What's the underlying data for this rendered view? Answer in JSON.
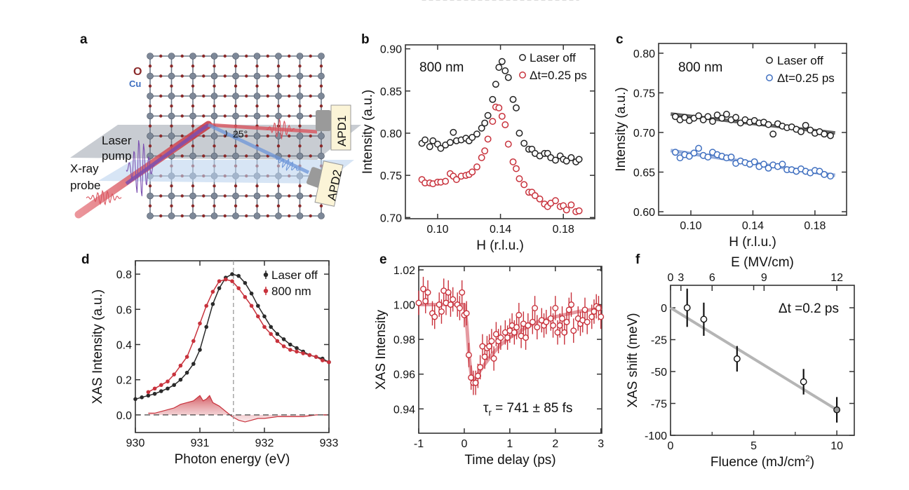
{
  "panel_labels": [
    "a",
    "b",
    "c",
    "d",
    "e",
    "f"
  ],
  "schematic": {
    "o_label": "O",
    "cu_label": "Cu",
    "laser_pump_lines": [
      "Laser",
      "pump"
    ],
    "xray_probe_lines": [
      "X-ray",
      "probe"
    ],
    "angle": "25°",
    "apd1": "APD1",
    "apd2": "APD2",
    "colors": {
      "o": "#8b2a2a",
      "cu": "#3f6fc0",
      "lattice": "#6f7a88",
      "xray": "#d9545e",
      "laser": "#7b4fb0",
      "scattered2": "#6e96d8"
    }
  },
  "chart_data": [
    {
      "panel": "b",
      "type": "scatter",
      "annotation": "800 nm",
      "xlabel": "H (r.l.u.)",
      "ylabel": "Intensity (a.u.)",
      "xlim": [
        0.0795,
        0.2
      ],
      "ylim": [
        0.6986,
        0.9047
      ],
      "xticks": [
        "0.10",
        "0.14",
        "0.18"
      ],
      "yticks": [
        "0.70",
        "0.75",
        "0.80",
        "0.85",
        "0.90"
      ],
      "legend": "top-right",
      "series": [
        {
          "name": "Laser off",
          "color": "#222222",
          "fit_color": "#6b6b6b",
          "x": [
            0.09,
            0.092,
            0.095,
            0.097,
            0.1,
            0.102,
            0.105,
            0.108,
            0.11,
            0.112,
            0.115,
            0.118,
            0.12,
            0.122,
            0.125,
            0.128,
            0.13,
            0.132,
            0.135,
            0.137,
            0.139,
            0.141,
            0.143,
            0.145,
            0.148,
            0.15,
            0.152,
            0.155,
            0.158,
            0.16,
            0.162,
            0.165,
            0.168,
            0.17,
            0.172,
            0.175,
            0.178,
            0.18,
            0.182,
            0.185,
            0.188,
            0.19
          ],
          "y": [
            0.788,
            0.792,
            0.784,
            0.791,
            0.787,
            0.782,
            0.786,
            0.789,
            0.801,
            0.791,
            0.792,
            0.794,
            0.791,
            0.795,
            0.799,
            0.806,
            0.812,
            0.821,
            0.84,
            0.858,
            0.878,
            0.885,
            0.874,
            0.866,
            0.84,
            0.83,
            0.8,
            0.788,
            0.781,
            0.781,
            0.776,
            0.773,
            0.776,
            0.776,
            0.771,
            0.768,
            0.773,
            0.769,
            0.767,
            0.771,
            0.766,
            0.769
          ]
        },
        {
          "name": "Δt=0.25 ps",
          "color": "#c8323c",
          "fit_color": "#e07a82",
          "x": [
            0.09,
            0.092,
            0.095,
            0.097,
            0.1,
            0.102,
            0.105,
            0.108,
            0.11,
            0.112,
            0.115,
            0.118,
            0.12,
            0.122,
            0.125,
            0.128,
            0.13,
            0.132,
            0.135,
            0.137,
            0.139,
            0.141,
            0.143,
            0.145,
            0.148,
            0.15,
            0.152,
            0.155,
            0.158,
            0.16,
            0.162,
            0.165,
            0.168,
            0.17,
            0.172,
            0.175,
            0.178,
            0.18,
            0.182,
            0.185,
            0.188,
            0.19
          ],
          "y": [
            0.745,
            0.741,
            0.741,
            0.74,
            0.742,
            0.742,
            0.743,
            0.752,
            0.749,
            0.745,
            0.749,
            0.75,
            0.751,
            0.754,
            0.76,
            0.771,
            0.779,
            0.793,
            0.814,
            0.831,
            0.83,
            0.82,
            0.81,
            0.787,
            0.766,
            0.758,
            0.746,
            0.739,
            0.73,
            0.73,
            0.726,
            0.722,
            0.716,
            0.713,
            0.717,
            0.72,
            0.713,
            0.714,
            0.709,
            0.715,
            0.707,
            0.708
          ]
        }
      ]
    },
    {
      "panel": "c",
      "type": "scatter",
      "annotation": "800 nm",
      "xlabel": "H (r.l.u.)",
      "ylabel": "Intensity (a.u.)",
      "xlim": [
        0.0792,
        0.2004
      ],
      "ylim": [
        0.5956,
        0.8123
      ],
      "xticks": [
        "0.10",
        "0.14",
        "0.18"
      ],
      "yticks": [
        "0.60",
        "0.65",
        "0.70",
        "0.75",
        "0.80"
      ],
      "legend": "top-right",
      "series": [
        {
          "name": "Laser off",
          "color": "#222222",
          "fit_color": "#555555",
          "x": [
            0.09,
            0.093,
            0.096,
            0.099,
            0.102,
            0.105,
            0.108,
            0.111,
            0.114,
            0.117,
            0.12,
            0.123,
            0.126,
            0.129,
            0.132,
            0.135,
            0.138,
            0.141,
            0.144,
            0.147,
            0.15,
            0.153,
            0.156,
            0.159,
            0.162,
            0.165,
            0.168,
            0.171,
            0.174,
            0.177,
            0.18,
            0.183,
            0.186,
            0.19
          ],
          "y": [
            0.72,
            0.716,
            0.719,
            0.715,
            0.718,
            0.721,
            0.716,
            0.72,
            0.714,
            0.722,
            0.718,
            0.723,
            0.716,
            0.719,
            0.712,
            0.716,
            0.713,
            0.715,
            0.712,
            0.713,
            0.71,
            0.698,
            0.711,
            0.708,
            0.706,
            0.707,
            0.704,
            0.701,
            0.709,
            0.703,
            0.699,
            0.701,
            0.698,
            0.696
          ]
        },
        {
          "name": "Δt=0.25 ps",
          "color": "#3f6fc0",
          "fit_color": "#8fa8d8",
          "x": [
            0.09,
            0.093,
            0.096,
            0.099,
            0.102,
            0.105,
            0.108,
            0.111,
            0.114,
            0.117,
            0.12,
            0.123,
            0.126,
            0.129,
            0.132,
            0.135,
            0.138,
            0.141,
            0.144,
            0.147,
            0.15,
            0.153,
            0.156,
            0.159,
            0.162,
            0.165,
            0.168,
            0.171,
            0.174,
            0.177,
            0.18,
            0.183,
            0.186,
            0.19
          ],
          "y": [
            0.675,
            0.668,
            0.672,
            0.67,
            0.674,
            0.68,
            0.671,
            0.669,
            0.675,
            0.672,
            0.67,
            0.668,
            0.669,
            0.661,
            0.664,
            0.662,
            0.66,
            0.663,
            0.657,
            0.66,
            0.655,
            0.659,
            0.657,
            0.66,
            0.653,
            0.653,
            0.651,
            0.654,
            0.651,
            0.649,
            0.652,
            0.651,
            0.647,
            0.645
          ]
        }
      ]
    },
    {
      "panel": "d",
      "type": "line",
      "xlabel": "Photon energy (eV)",
      "ylabel": "XAS Intensity (a.u.)",
      "xlim": [
        930,
        933
      ],
      "ylim": [
        -0.1,
        0.876
      ],
      "xticks": [
        "930",
        "931",
        "932",
        "933"
      ],
      "yticks": [
        "0.0",
        "0.2",
        "0.4",
        "0.6",
        "0.8"
      ],
      "vline_x": 931.52,
      "legend": "top-right",
      "series": [
        {
          "name": "Laser off",
          "color": "#2a2a2a",
          "x": [
            930.0,
            930.1,
            930.2,
            930.3,
            930.4,
            930.5,
            930.6,
            930.7,
            930.8,
            930.9,
            931.0,
            931.1,
            931.2,
            931.3,
            931.4,
            931.5,
            931.6,
            931.7,
            931.8,
            931.9,
            932.0,
            932.1,
            932.2,
            932.3,
            932.4,
            932.5,
            932.6,
            932.7,
            932.8,
            932.9,
            933.0
          ],
          "y": [
            0.09,
            0.1,
            0.11,
            0.12,
            0.135,
            0.15,
            0.17,
            0.2,
            0.24,
            0.29,
            0.37,
            0.5,
            0.63,
            0.72,
            0.78,
            0.8,
            0.79,
            0.75,
            0.69,
            0.62,
            0.56,
            0.5,
            0.46,
            0.43,
            0.4,
            0.38,
            0.36,
            0.34,
            0.33,
            0.32,
            0.3
          ]
        },
        {
          "name": "800 nm",
          "color": "#c8323c",
          "x": [
            930.2,
            930.3,
            930.4,
            930.5,
            930.6,
            930.7,
            930.8,
            930.9,
            931.0,
            931.1,
            931.2,
            931.3,
            931.4,
            931.5,
            931.6,
            931.7,
            931.8,
            931.9,
            932.0,
            932.1,
            932.2,
            932.3,
            932.4,
            932.5,
            932.6,
            932.7,
            932.8,
            932.9,
            933.0
          ],
          "y": [
            0.13,
            0.15,
            0.17,
            0.19,
            0.23,
            0.28,
            0.33,
            0.42,
            0.52,
            0.62,
            0.7,
            0.76,
            0.77,
            0.76,
            0.72,
            0.67,
            0.62,
            0.56,
            0.5,
            0.46,
            0.42,
            0.39,
            0.37,
            0.36,
            0.35,
            0.34,
            0.33,
            0.31,
            0.3
          ]
        },
        {
          "name": "",
          "role": "difference",
          "color": "#c8323c",
          "x": [
            930.2,
            930.3,
            930.4,
            930.5,
            930.6,
            930.7,
            930.8,
            930.9,
            931.0,
            931.05,
            931.1,
            931.15,
            931.2,
            931.3,
            931.4,
            931.5,
            931.6,
            931.7,
            931.8,
            931.9,
            932.0,
            932.2,
            932.4,
            932.6,
            932.8,
            933.0
          ],
          "y": [
            0.01,
            0.01,
            0.02,
            0.03,
            0.04,
            0.06,
            0.07,
            0.08,
            0.11,
            0.08,
            0.09,
            0.11,
            0.07,
            0.05,
            0.02,
            -0.01,
            -0.03,
            -0.04,
            -0.03,
            -0.02,
            -0.02,
            -0.01,
            -0.01,
            -0.01,
            0.0,
            0.0
          ]
        }
      ]
    },
    {
      "panel": "e",
      "type": "scatter",
      "xlabel": "Time delay (ps)",
      "ylabel": "XAS Intensity",
      "xlim": [
        -1,
        3.02
      ],
      "ylim": [
        0.926,
        1.022
      ],
      "xticks": [
        "-1",
        "0",
        "1",
        "2",
        "3"
      ],
      "yticks": [
        "0.94",
        "0.96",
        "0.98",
        "1.00",
        "1.02"
      ],
      "annotation": {
        "tau": "τ",
        "sub": "r",
        "text": " = 741 ± 85 fs"
      },
      "series": [
        {
          "name": "",
          "color": "#c8323c",
          "fit_color": "#e08890",
          "yerr": 0.007,
          "x": [
            -1.0,
            -0.9,
            -0.85,
            -0.8,
            -0.7,
            -0.65,
            -0.55,
            -0.5,
            -0.45,
            -0.4,
            -0.35,
            -0.3,
            -0.25,
            -0.15,
            -0.1,
            -0.05,
            0.0,
            0.05,
            0.1,
            0.15,
            0.2,
            0.25,
            0.3,
            0.35,
            0.4,
            0.45,
            0.5,
            0.55,
            0.6,
            0.65,
            0.7,
            0.75,
            0.8,
            0.9,
            0.95,
            1.0,
            1.05,
            1.1,
            1.15,
            1.2,
            1.25,
            1.3,
            1.35,
            1.4,
            1.5,
            1.55,
            1.6,
            1.7,
            1.75,
            1.8,
            1.9,
            1.95,
            2.0,
            2.05,
            2.1,
            2.15,
            2.2,
            2.25,
            2.3,
            2.35,
            2.4,
            2.5,
            2.55,
            2.6,
            2.65,
            2.7,
            2.8,
            2.85,
            2.9,
            2.95,
            3.0
          ],
          "y": [
            1.001,
            1.009,
            1.002,
            1.007,
            0.995,
            0.993,
            1.0,
            0.996,
            1.008,
            1.001,
            1.007,
            1.0,
            1.003,
            1.0,
            0.998,
            1.007,
            0.994,
            0.995,
            0.971,
            0.958,
            0.955,
            0.955,
            0.959,
            0.964,
            0.976,
            0.97,
            0.975,
            0.976,
            0.979,
            0.969,
            0.983,
            0.979,
            0.981,
            0.984,
            0.981,
            0.985,
            0.988,
            0.984,
            0.987,
            0.994,
            0.982,
            0.989,
            0.981,
            0.988,
            0.99,
            0.998,
            0.987,
            0.991,
            0.988,
            0.99,
            0.992,
            0.988,
            0.998,
            0.984,
            0.988,
            0.992,
            0.984,
            0.99,
            0.997,
            1.0,
            0.985,
            0.992,
            0.989,
            0.991,
            0.997,
            0.99,
            0.993,
            0.996,
            0.999,
            0.998,
            0.993
          ]
        },
        {
          "name": "",
          "role": "fit",
          "x": [
            -1,
            0,
            0.05,
            0.1,
            0.15,
            0.2,
            0.3,
            0.4,
            0.6,
            0.8,
            1.0,
            1.3,
            1.6,
            2.0,
            2.5,
            3.02
          ],
          "y": [
            1.0,
            1.0,
            0.99,
            0.972,
            0.96,
            0.956,
            0.96,
            0.964,
            0.971,
            0.977,
            0.981,
            0.986,
            0.99,
            0.993,
            0.996,
            0.998
          ]
        }
      ]
    },
    {
      "panel": "f",
      "type": "scatter",
      "xlabel": "Fluence (mJ/cm",
      "xlabel_sup": "2",
      "xlabel_end": ")",
      "ylabel": "XAS shift (meV)",
      "top_xlabel": "E (MV/cm)",
      "top_xticks": [
        "0",
        "3",
        "6",
        "9",
        "12"
      ],
      "top_xtick_values": [
        0,
        3,
        6,
        9,
        12
      ],
      "top_axis_scale": "fluence ∝ E²; E = 12 MV/cm at 10 mJ/cm²",
      "xlim": [
        0,
        11.05
      ],
      "ylim": [
        -100,
        17.6
      ],
      "xticks": [
        "0",
        "5",
        "10"
      ],
      "yticks": [
        "0",
        "-25",
        "-50",
        "-75",
        "-100"
      ],
      "annotation": "Δt =0.2 ps",
      "series": [
        {
          "name": "",
          "color": "#111111",
          "x": [
            1,
            2,
            4,
            8,
            10
          ],
          "y": [
            0,
            -9,
            -40,
            -58,
            -80
          ],
          "yerr": [
            15,
            13,
            10,
            10,
            10
          ],
          "marker_fill": [
            "#ffffff",
            "#ffffff",
            "#ffffff",
            "#ffffff",
            "#999999"
          ]
        },
        {
          "name": "",
          "role": "fit",
          "color": "#b5b5b5",
          "x": [
            0,
            10
          ],
          "y": [
            0,
            -80
          ]
        }
      ]
    }
  ]
}
